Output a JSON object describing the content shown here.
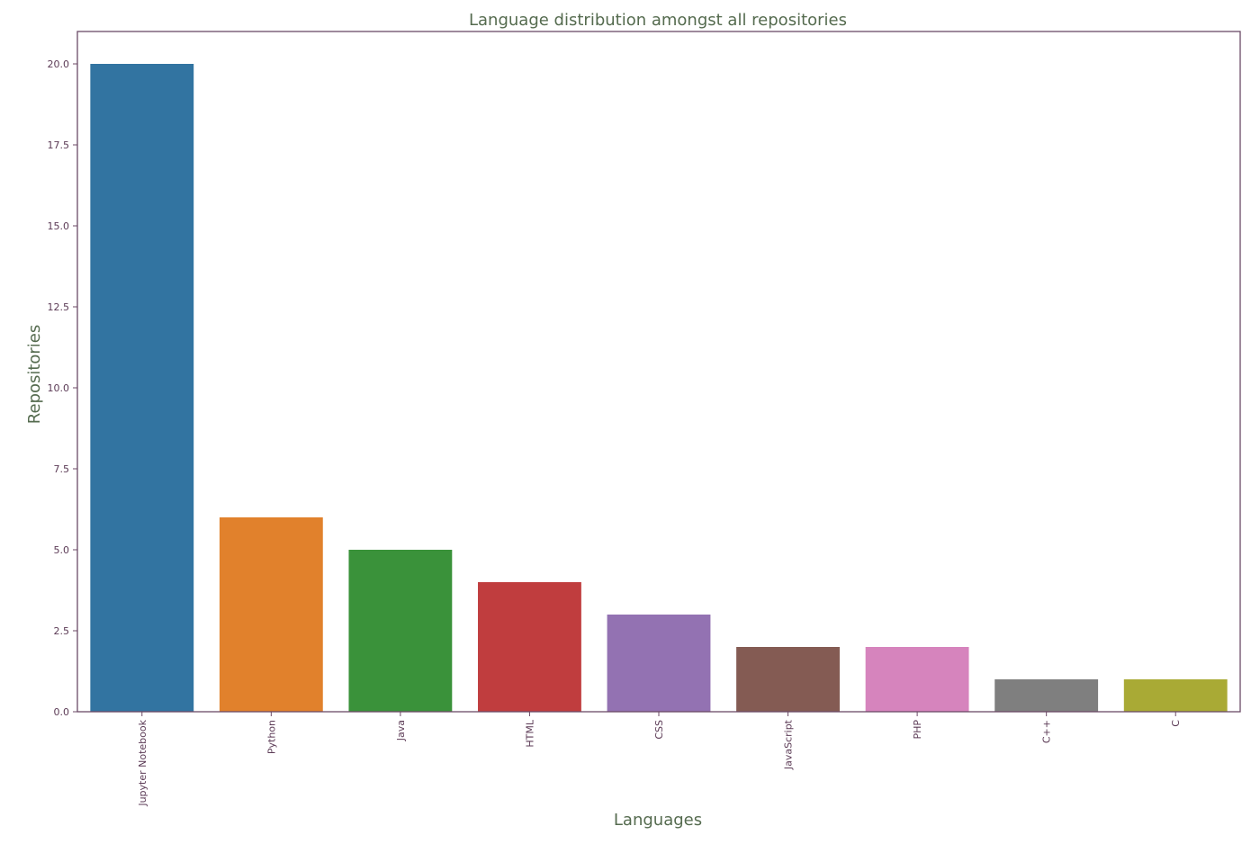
{
  "chart_data": {
    "type": "bar",
    "title": "Language distribution amongst all repositories",
    "xlabel": "Languages",
    "ylabel": "Repositories",
    "categories": [
      "Jupyter Notebook",
      "Python",
      "Java",
      "HTML",
      "CSS",
      "JavaScript",
      "PHP",
      "C++",
      "C"
    ],
    "values": [
      20,
      6,
      5,
      4,
      3,
      2,
      2,
      1,
      1
    ],
    "colors": [
      "#3274a1",
      "#e1812c",
      "#3a923a",
      "#c03d3e",
      "#9372b2",
      "#845b53",
      "#d684bd",
      "#7f7f7f",
      "#a9aa35"
    ],
    "yticks": [
      "0.0",
      "2.5",
      "5.0",
      "7.5",
      "10.0",
      "12.5",
      "15.0",
      "17.5",
      "20.0"
    ],
    "ylim": [
      0,
      21
    ],
    "grid": false,
    "frame_color": "#6b4a66"
  }
}
